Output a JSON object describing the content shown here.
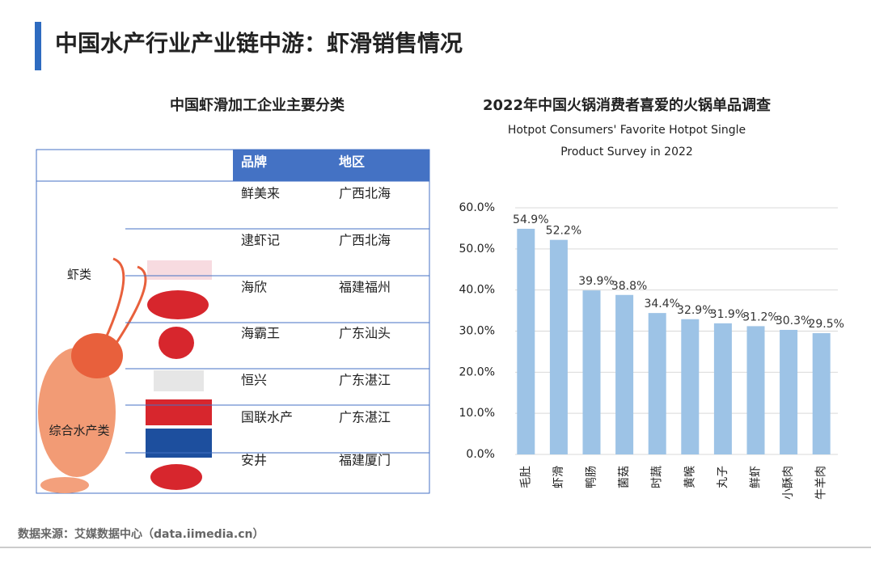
{
  "header": {
    "title": "中国水产行业产业链中游：虾滑销售情况"
  },
  "table": {
    "title": "中国虾滑加工企业主要分类",
    "columns": [
      "品牌",
      "地区"
    ],
    "groups": [
      {
        "label": "虾类"
      },
      {
        "label": "综合水产类"
      }
    ],
    "rows": [
      [
        "鲜美来",
        "广西北海"
      ],
      [
        "逮虾记",
        "广西北海"
      ],
      [
        "海欣",
        "福建福州"
      ],
      [
        "海霸王",
        "广东汕头"
      ],
      [
        "恒兴",
        "广东湛江"
      ],
      [
        "国联水产",
        "广东湛江"
      ],
      [
        "安井",
        "福建厦门"
      ]
    ]
  },
  "chart_data": {
    "type": "bar",
    "title": "2022年中国火锅消费者喜爱的火锅单品调查",
    "subtitle": "Hotpot Consumers' Favorite Hotpot Single Product Survey in 2022",
    "categories": [
      "毛肚",
      "虾滑",
      "鸭肠",
      "菌菇",
      "时蔬",
      "黄喉",
      "丸子",
      "鲜虾",
      "小酥肉",
      "牛羊肉"
    ],
    "values": [
      54.9,
      52.2,
      39.9,
      38.8,
      34.4,
      32.9,
      31.9,
      31.2,
      30.3,
      29.5
    ],
    "value_labels": [
      "54.9%",
      "52.2%",
      "39.9%",
      "38.8%",
      "34.4%",
      "32.9%",
      "31.9%",
      "31.2%",
      "30.3%",
      "29.5%"
    ],
    "color": "#9dc3e6",
    "ylim": [
      0,
      60
    ],
    "yticks": [
      {
        "value": 0,
        "label": "0.0%"
      },
      {
        "value": 10,
        "label": "10.0%"
      },
      {
        "value": 20,
        "label": "20.0%"
      },
      {
        "value": 30,
        "label": "30.0%"
      },
      {
        "value": 40,
        "label": "40.0%"
      },
      {
        "value": 50,
        "label": "50.0%"
      },
      {
        "value": 60,
        "label": "60.0%"
      }
    ],
    "grid": true
  },
  "source": "数据来源：艾媒数据中心（data.iimedia.cn）"
}
